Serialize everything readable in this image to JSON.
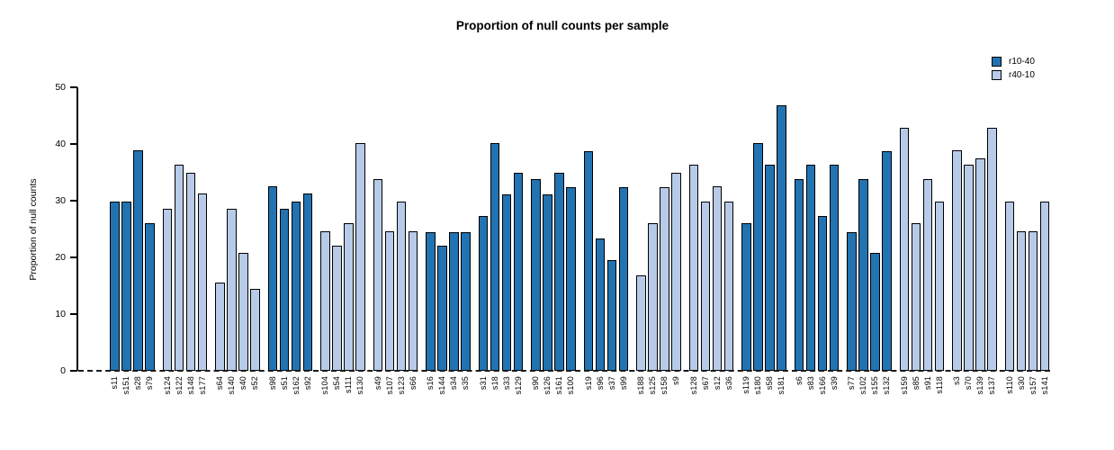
{
  "chart_data": {
    "type": "bar",
    "title": "Proportion of null counts per sample",
    "ylabel": "Proportion of null counts",
    "xlabel": "",
    "ylim": [
      0,
      50
    ],
    "yticks": [
      0,
      10,
      20,
      30,
      40,
      50
    ],
    "grid": false,
    "legend_position": "top-right",
    "baseline": {
      "y": 0,
      "style": "dashed",
      "color": "#1a1a1a"
    },
    "group_size": 4,
    "series_colors": {
      "r10-40": "#2273B2",
      "r40-10": "#B7CBE8"
    },
    "bar_border_color": "#000000",
    "legend": [
      {
        "label": "r10-40",
        "color": "#2273B2"
      },
      {
        "label": "r40-10",
        "color": "#B7CBE8"
      }
    ],
    "samples": [
      {
        "name": "s11",
        "value": 29.8,
        "series": "r10-40"
      },
      {
        "name": "s151",
        "value": 29.8,
        "series": "r10-40"
      },
      {
        "name": "s28",
        "value": 38.9,
        "series": "r10-40"
      },
      {
        "name": "s79",
        "value": 26.0,
        "series": "r10-40"
      },
      {
        "name": "s124",
        "value": 28.6,
        "series": "r40-10"
      },
      {
        "name": "s122",
        "value": 36.4,
        "series": "r40-10"
      },
      {
        "name": "s148",
        "value": 35.0,
        "series": "r40-10"
      },
      {
        "name": "s177",
        "value": 31.2,
        "series": "r40-10"
      },
      {
        "name": "s64",
        "value": 15.6,
        "series": "r40-10"
      },
      {
        "name": "s140",
        "value": 28.6,
        "series": "r40-10"
      },
      {
        "name": "s40",
        "value": 20.8,
        "series": "r40-10"
      },
      {
        "name": "s52",
        "value": 14.4,
        "series": "r40-10"
      },
      {
        "name": "s98",
        "value": 32.5,
        "series": "r10-40"
      },
      {
        "name": "s51",
        "value": 28.6,
        "series": "r10-40"
      },
      {
        "name": "s162",
        "value": 29.8,
        "series": "r10-40"
      },
      {
        "name": "s92",
        "value": 31.2,
        "series": "r10-40"
      },
      {
        "name": "s104",
        "value": 24.6,
        "series": "r40-10"
      },
      {
        "name": "s54",
        "value": 22.1,
        "series": "r40-10"
      },
      {
        "name": "s111",
        "value": 26.0,
        "series": "r40-10"
      },
      {
        "name": "s130",
        "value": 40.2,
        "series": "r40-10"
      },
      {
        "name": "s49",
        "value": 33.8,
        "series": "r40-10"
      },
      {
        "name": "s107",
        "value": 24.6,
        "series": "r40-10"
      },
      {
        "name": "s123",
        "value": 29.8,
        "series": "r40-10"
      },
      {
        "name": "s66",
        "value": 24.6,
        "series": "r40-10"
      },
      {
        "name": "s16",
        "value": 24.5,
        "series": "r10-40"
      },
      {
        "name": "s144",
        "value": 22.0,
        "series": "r10-40"
      },
      {
        "name": "s34",
        "value": 24.5,
        "series": "r10-40"
      },
      {
        "name": "s35",
        "value": 24.5,
        "series": "r10-40"
      },
      {
        "name": "s31",
        "value": 27.3,
        "series": "r10-40"
      },
      {
        "name": "s18",
        "value": 40.1,
        "series": "r10-40"
      },
      {
        "name": "s33",
        "value": 31.1,
        "series": "r10-40"
      },
      {
        "name": "s129",
        "value": 35.0,
        "series": "r10-40"
      },
      {
        "name": "s90",
        "value": 33.8,
        "series": "r10-40"
      },
      {
        "name": "s126",
        "value": 31.1,
        "series": "r10-40"
      },
      {
        "name": "s161",
        "value": 35.0,
        "series": "r10-40"
      },
      {
        "name": "s100",
        "value": 32.4,
        "series": "r10-40"
      },
      {
        "name": "s19",
        "value": 38.8,
        "series": "r10-40"
      },
      {
        "name": "s96",
        "value": 23.3,
        "series": "r10-40"
      },
      {
        "name": "s37",
        "value": 19.5,
        "series": "r10-40"
      },
      {
        "name": "s99",
        "value": 32.4,
        "series": "r10-40"
      },
      {
        "name": "s188",
        "value": 16.8,
        "series": "r40-10"
      },
      {
        "name": "s125",
        "value": 26.0,
        "series": "r40-10"
      },
      {
        "name": "s158",
        "value": 32.4,
        "series": "r40-10"
      },
      {
        "name": "s9",
        "value": 35.0,
        "series": "r40-10"
      },
      {
        "name": "s128",
        "value": 36.4,
        "series": "r40-10"
      },
      {
        "name": "s67",
        "value": 29.9,
        "series": "r40-10"
      },
      {
        "name": "s12",
        "value": 32.5,
        "series": "r40-10"
      },
      {
        "name": "s36",
        "value": 29.8,
        "series": "r40-10"
      },
      {
        "name": "s119",
        "value": 26.0,
        "series": "r10-40"
      },
      {
        "name": "s180",
        "value": 40.2,
        "series": "r10-40"
      },
      {
        "name": "s58",
        "value": 36.4,
        "series": "r10-40"
      },
      {
        "name": "s181",
        "value": 46.8,
        "series": "r10-40"
      },
      {
        "name": "s6",
        "value": 33.8,
        "series": "r10-40"
      },
      {
        "name": "s83",
        "value": 36.4,
        "series": "r10-40"
      },
      {
        "name": "s166",
        "value": 27.3,
        "series": "r10-40"
      },
      {
        "name": "s39",
        "value": 36.4,
        "series": "r10-40"
      },
      {
        "name": "s77",
        "value": 24.5,
        "series": "r10-40"
      },
      {
        "name": "s102",
        "value": 33.8,
        "series": "r10-40"
      },
      {
        "name": "s155",
        "value": 20.8,
        "series": "r10-40"
      },
      {
        "name": "s132",
        "value": 38.8,
        "series": "r10-40"
      },
      {
        "name": "s159",
        "value": 42.8,
        "series": "r40-10"
      },
      {
        "name": "s85",
        "value": 26.0,
        "series": "r40-10"
      },
      {
        "name": "s91",
        "value": 33.8,
        "series": "r40-10"
      },
      {
        "name": "s118",
        "value": 29.8,
        "series": "r40-10"
      },
      {
        "name": "s3",
        "value": 38.9,
        "series": "r40-10"
      },
      {
        "name": "s70",
        "value": 36.3,
        "series": "r40-10"
      },
      {
        "name": "s139",
        "value": 37.5,
        "series": "r40-10"
      },
      {
        "name": "s137",
        "value": 42.8,
        "series": "r40-10"
      },
      {
        "name": "s110",
        "value": 29.8,
        "series": "r40-10"
      },
      {
        "name": "s30",
        "value": 24.6,
        "series": "r40-10"
      },
      {
        "name": "s157",
        "value": 24.6,
        "series": "r40-10"
      },
      {
        "name": "s141",
        "value": 29.8,
        "series": "r40-10"
      }
    ]
  }
}
